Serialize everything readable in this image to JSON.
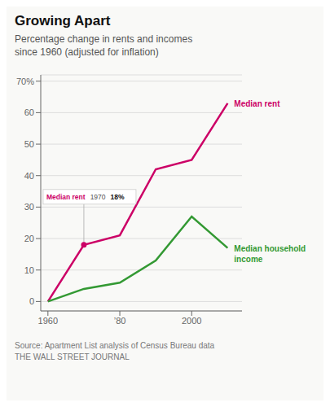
{
  "chart_data": {
    "type": "line",
    "title": "Growing Apart",
    "subtitle": "Percentage change in rents and incomes\nsince 1960 (adjusted for inflation)",
    "source": "Source: Apartment List analysis of Census Bureau data\nTHE WALL STREET JOURNAL",
    "x": [
      1960,
      1970,
      1980,
      1990,
      2000,
      2010
    ],
    "series": [
      {
        "name": "Median rent",
        "color": "#cc0066",
        "values": [
          0,
          18,
          21,
          42,
          45,
          63
        ]
      },
      {
        "name": "Median household\nincome",
        "color": "#339933",
        "values": [
          0,
          4,
          6,
          13,
          27,
          17
        ]
      }
    ],
    "xlim": [
      1958,
      2014
    ],
    "xticks": [
      1960,
      {
        "value": 1980,
        "label": "’80"
      },
      2000
    ],
    "ylim": [
      -3,
      72
    ],
    "yticks": [
      0,
      10,
      20,
      30,
      40,
      50,
      60,
      {
        "value": 70,
        "label": "70%"
      }
    ],
    "grid": true,
    "annotations": [
      {
        "x": 1970,
        "y": 18,
        "texts": [
          "Median rent",
          "1970",
          "18%"
        ]
      }
    ]
  }
}
